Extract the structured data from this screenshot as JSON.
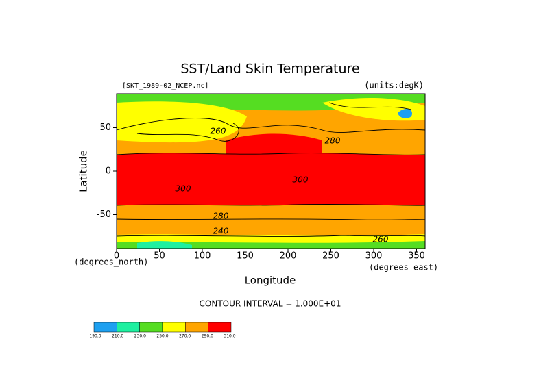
{
  "chart_data": {
    "type": "contour",
    "title": "SST/Land Skin Temperature",
    "subtitle_left": "[SKT_1989-02_NCEP.nc]",
    "subtitle_right": "(units:degK)",
    "x_label": "Longitude",
    "y_label": "Latitude",
    "y_units": "(degrees_north)",
    "x_units": "(degrees_east)",
    "footer": "CONTOUR INTERVAL = 1.000E+01",
    "xlim": [
      0,
      360
    ],
    "xticks": [
      0,
      50,
      100,
      150,
      200,
      250,
      300,
      350
    ],
    "ylim": [
      -89,
      89
    ],
    "yticks": [
      -50,
      0,
      50
    ],
    "contour_labels": [
      260,
      280,
      300,
      300,
      280,
      240,
      260
    ],
    "colorbar": {
      "colors": [
        "#1ea0f0",
        "#1ef0a0",
        "#55dd22",
        "#ffff00",
        "#ffa500",
        "#ff0000"
      ],
      "ticks": [
        {
          "value": 190,
          "label": "190.0"
        },
        {
          "value": 210,
          "label": "210.0"
        },
        {
          "value": 230,
          "label": "230.0"
        },
        {
          "value": 250,
          "label": "250.0"
        },
        {
          "value": 270,
          "label": "270.0"
        },
        {
          "value": 290,
          "label": "290.0"
        },
        {
          "value": 310,
          "label": "310.0"
        }
      ]
    }
  }
}
